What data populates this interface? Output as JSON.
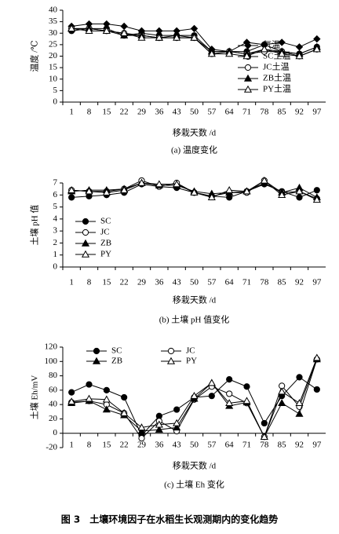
{
  "chart_data": [
    {
      "type": "line",
      "xlabel": "移栽天数 /d",
      "ylabel": "温度 /℃",
      "caption": "(a) 温度变化",
      "categories": [
        "1",
        "8",
        "15",
        "22",
        "29",
        "36",
        "43",
        "50",
        "57",
        "64",
        "71",
        "78",
        "85",
        "92",
        "97"
      ],
      "ylim": [
        0,
        40
      ],
      "yticks": [
        0,
        5,
        10,
        15,
        20,
        25,
        30,
        35,
        40
      ],
      "legend": "lower right",
      "legend_columns": 1,
      "series": [
        {
          "name": "气温",
          "color": "#000000",
          "marker": "diamond",
          "values": [
            33,
            34,
            34,
            33,
            31,
            31,
            31,
            32,
            23,
            22,
            26,
            25,
            26,
            24,
            27.5
          ]
        },
        {
          "name": "SC土温",
          "color": "#000000",
          "marker": "circle",
          "values": [
            31,
            32,
            32,
            29,
            30,
            29,
            29,
            29,
            22,
            22,
            22,
            25,
            22,
            21,
            24
          ]
        },
        {
          "name": "JC土温",
          "color": "#000000",
          "marker": "circle-open",
          "values": [
            32,
            32,
            31,
            30,
            29,
            28,
            28,
            28,
            21,
            22,
            21,
            22,
            22,
            20,
            23
          ]
        },
        {
          "name": "ZB土温",
          "color": "#000000",
          "marker": "triangle",
          "values": [
            32,
            32,
            31,
            29,
            29,
            28,
            29,
            28,
            22,
            22,
            21,
            23,
            22,
            21,
            24
          ]
        },
        {
          "name": "PY土温",
          "color": "#000000",
          "marker": "triangle-open",
          "values": [
            32,
            31,
            31,
            30,
            28,
            28,
            28,
            28,
            21,
            21,
            20,
            23,
            21,
            20,
            23
          ]
        }
      ]
    },
    {
      "type": "line",
      "xlabel": "移栽天数 /d",
      "ylabel": "土壤 pH 值",
      "caption": "(b) 土壤 pH 值变化",
      "categories": [
        "1",
        "8",
        "15",
        "22",
        "29",
        "36",
        "43",
        "50",
        "57",
        "64",
        "71",
        "78",
        "85",
        "92",
        "97"
      ],
      "ylim": [
        0,
        7
      ],
      "yticks": [
        0,
        1,
        2,
        3,
        4,
        5,
        6,
        7
      ],
      "legend": "lower left",
      "legend_columns": 1,
      "series": [
        {
          "name": "SC",
          "color": "#000000",
          "marker": "circle",
          "values": [
            5.8,
            5.9,
            6.0,
            6.2,
            6.9,
            6.7,
            6.6,
            6.2,
            5.9,
            5.8,
            6.3,
            6.9,
            6.3,
            5.8,
            6.4
          ]
        },
        {
          "name": "JC",
          "color": "#000000",
          "marker": "circle-open",
          "values": [
            6.4,
            6.3,
            6.3,
            6.5,
            7.2,
            6.7,
            7.0,
            6.2,
            5.9,
            6.2,
            6.2,
            7.2,
            6.2,
            6.3,
            5.7
          ]
        },
        {
          "name": "ZB",
          "color": "#000000",
          "marker": "triangle",
          "values": [
            6.3,
            6.4,
            6.4,
            6.5,
            7.0,
            6.8,
            6.8,
            6.3,
            6.1,
            6.2,
            6.3,
            7.0,
            6.2,
            6.6,
            5.8
          ]
        },
        {
          "name": "PY",
          "color": "#000000",
          "marker": "triangle-open",
          "values": [
            6.4,
            6.3,
            6.2,
            6.4,
            7.0,
            6.9,
            6.9,
            6.2,
            5.8,
            6.4,
            6.3,
            7.2,
            6.0,
            6.3,
            5.6
          ]
        }
      ]
    },
    {
      "type": "line",
      "xlabel": "移栽天数 /d",
      "ylabel": "土壤 Eh/mV",
      "caption": "(c) 土壤 Eh 变化",
      "categories": [
        "1",
        "8",
        "15",
        "22",
        "29",
        "36",
        "43",
        "50",
        "57",
        "64",
        "71",
        "78",
        "85",
        "92",
        "97"
      ],
      "ylim": [
        -20,
        120
      ],
      "yticks": [
        -20,
        0,
        20,
        40,
        60,
        80,
        100,
        120
      ],
      "legend": "upper left",
      "legend_columns": 2,
      "series": [
        {
          "name": "SC",
          "color": "#000000",
          "marker": "circle",
          "values": [
            57,
            68,
            60,
            50,
            -3,
            24,
            33,
            50,
            52,
            75,
            65,
            14,
            52,
            78,
            61
          ]
        },
        {
          "name": "JC",
          "color": "#000000",
          "marker": "circle-open",
          "values": [
            43,
            45,
            40,
            28,
            -7,
            17,
            3,
            47,
            65,
            55,
            42,
            -5,
            66,
            37,
            103
          ]
        },
        {
          "name": "ZB",
          "color": "#000000",
          "marker": "triangle",
          "values": [
            42,
            45,
            33,
            25,
            3,
            5,
            8,
            48,
            70,
            38,
            43,
            -5,
            42,
            27,
            103
          ]
        },
        {
          "name": "PY",
          "color": "#000000",
          "marker": "triangle-open",
          "values": [
            44,
            48,
            47,
            28,
            8,
            12,
            14,
            52,
            70,
            42,
            45,
            -5,
            58,
            42,
            105
          ]
        }
      ]
    }
  ],
  "figure_caption": "图 3　土壤环境因子在水稻生长观测期内的变化趋势"
}
